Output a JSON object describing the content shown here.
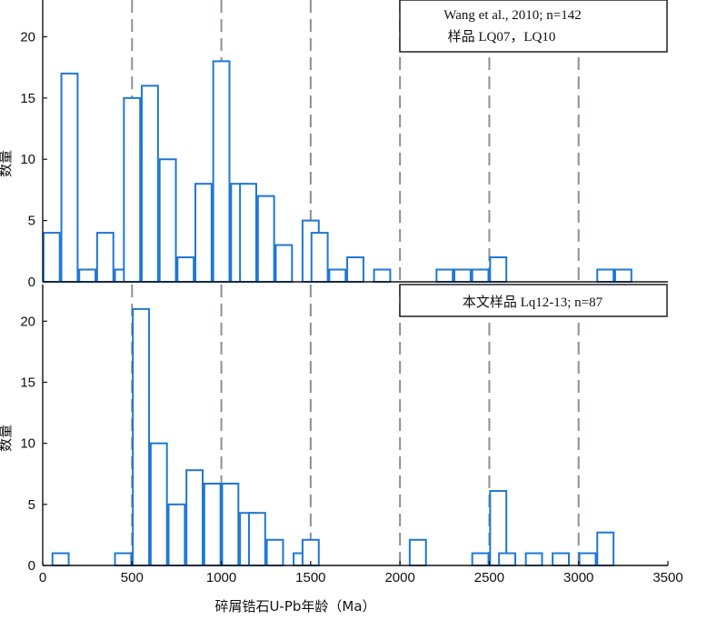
{
  "chart_data": [
    {
      "type": "bar",
      "annotation": [
        "Wang et al., 2010;  n=142",
        "样品 LQ07，LQ10"
      ],
      "ylabel": "数量",
      "xlim": [
        0,
        3500
      ],
      "ylim": [
        0,
        23
      ],
      "y_ticks": [
        "0",
        "5",
        "10",
        "15",
        "20"
      ],
      "bin_width": 100,
      "ref_lines": [
        500,
        1000,
        1500,
        2000,
        2500,
        3000
      ],
      "bins": [
        {
          "x": 0,
          "value": 4
        },
        {
          "x": 100,
          "value": 17
        },
        {
          "x": 200,
          "value": 1
        },
        {
          "x": 300,
          "value": 4
        },
        {
          "x": 400,
          "value": 1
        },
        {
          "x": 450,
          "value": 15
        },
        {
          "x": 550,
          "value": 16
        },
        {
          "x": 650,
          "value": 10
        },
        {
          "x": 750,
          "value": 2
        },
        {
          "x": 850,
          "value": 8
        },
        {
          "x": 950,
          "value": 18
        },
        {
          "x": 1050,
          "value": 8
        },
        {
          "x": 1100,
          "value": 8
        },
        {
          "x": 1200,
          "value": 7
        },
        {
          "x": 1300,
          "value": 3
        },
        {
          "x": 1450,
          "value": 5
        },
        {
          "x": 1500,
          "value": 4
        },
        {
          "x": 1600,
          "value": 1
        },
        {
          "x": 1700,
          "value": 2
        },
        {
          "x": 1850,
          "value": 1
        },
        {
          "x": 2200,
          "value": 1
        },
        {
          "x": 2300,
          "value": 1
        },
        {
          "x": 2400,
          "value": 1
        },
        {
          "x": 2500,
          "value": 2
        },
        {
          "x": 3100,
          "value": 1
        },
        {
          "x": 3200,
          "value": 1
        }
      ]
    },
    {
      "type": "bar",
      "annotation": [
        "本文样品 Lq12-13;  n=87"
      ],
      "ylabel": "数量",
      "xlabel": "碎屑锆石U-Pb年龄（Ma）",
      "xlim": [
        0,
        3500
      ],
      "ylim": [
        0,
        23
      ],
      "x_ticks": [
        "0",
        "500",
        "1000",
        "1500",
        "2000",
        "2500",
        "3000",
        "3500"
      ],
      "y_ticks": [
        "0",
        "5",
        "10",
        "15",
        "20"
      ],
      "bin_width": 100,
      "ref_lines": [
        500,
        1000,
        1500,
        2000,
        2500,
        3000
      ],
      "bins": [
        {
          "x": 50,
          "value": 1
        },
        {
          "x": 400,
          "value": 1
        },
        {
          "x": 500,
          "value": 21
        },
        {
          "x": 600,
          "value": 10
        },
        {
          "x": 700,
          "value": 5
        },
        {
          "x": 800,
          "value": 7.8
        },
        {
          "x": 900,
          "value": 6.7
        },
        {
          "x": 1000,
          "value": 6.7
        },
        {
          "x": 1100,
          "value": 4.3
        },
        {
          "x": 1150,
          "value": 4.3
        },
        {
          "x": 1250,
          "value": 2.1
        },
        {
          "x": 1400,
          "value": 1
        },
        {
          "x": 1450,
          "value": 2.1
        },
        {
          "x": 2050,
          "value": 2.1
        },
        {
          "x": 2400,
          "value": 1
        },
        {
          "x": 2500,
          "value": 6.1
        },
        {
          "x": 2550,
          "value": 1
        },
        {
          "x": 2700,
          "value": 1
        },
        {
          "x": 2850,
          "value": 1
        },
        {
          "x": 3000,
          "value": 1
        },
        {
          "x": 3100,
          "value": 2.7
        }
      ]
    }
  ],
  "colors": {
    "bar_stroke": "#1f77d4",
    "ref_line": "#8a8f99",
    "axis": "#111111"
  }
}
